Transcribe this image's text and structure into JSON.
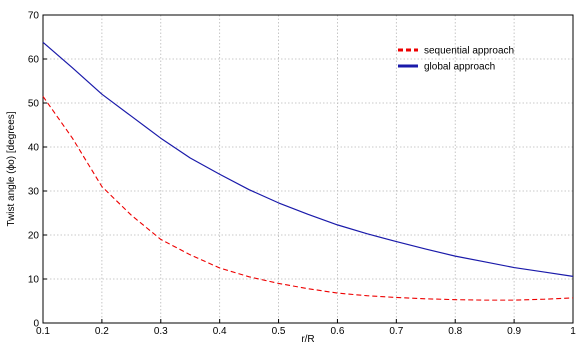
{
  "chart_data": {
    "type": "line",
    "title": "",
    "xlabel": "r/R",
    "ylabel": "Twist angle (ϕo) [degrees]",
    "xlim": [
      0.1,
      1
    ],
    "ylim": [
      0,
      70
    ],
    "xticks": [
      "0.1",
      "0.2",
      "0.3",
      "0.4",
      "0.5",
      "0.6",
      "0.7",
      "0.8",
      "0.9",
      "1"
    ],
    "yticks": [
      "0",
      "10",
      "20",
      "30",
      "40",
      "50",
      "60",
      "70"
    ],
    "grid": true,
    "legend_position": "top-right",
    "series": [
      {
        "name": "sequential approach",
        "color": "#ee0000",
        "style": "dashed",
        "x": [
          0.1,
          0.15,
          0.2,
          0.25,
          0.3,
          0.35,
          0.4,
          0.45,
          0.5,
          0.55,
          0.6,
          0.65,
          0.7,
          0.75,
          0.8,
          0.85,
          0.9,
          0.95,
          1.0
        ],
        "y": [
          51.5,
          42,
          31,
          24.5,
          19,
          15.5,
          12.5,
          10.5,
          9,
          7.8,
          6.8,
          6.2,
          5.8,
          5.5,
          5.3,
          5.2,
          5.2,
          5.4,
          5.7
        ]
      },
      {
        "name": "global approach",
        "color": "#1a1aaa",
        "style": "solid",
        "x": [
          0.1,
          0.15,
          0.2,
          0.25,
          0.3,
          0.35,
          0.4,
          0.45,
          0.5,
          0.55,
          0.6,
          0.65,
          0.7,
          0.75,
          0.8,
          0.85,
          0.9,
          0.95,
          1.0
        ],
        "y": [
          63.8,
          58,
          52,
          47,
          42,
          37.5,
          33.8,
          30.3,
          27.3,
          24.7,
          22.3,
          20.3,
          18.5,
          16.8,
          15.2,
          13.9,
          12.6,
          11.6,
          10.6
        ]
      }
    ]
  }
}
